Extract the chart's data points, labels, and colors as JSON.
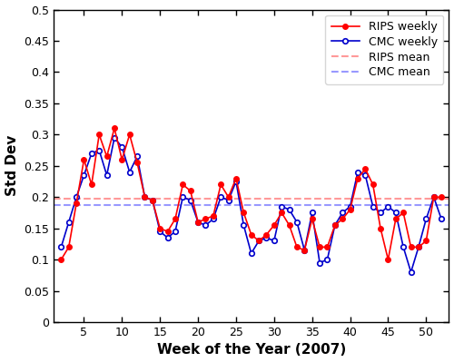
{
  "weeks": [
    2,
    3,
    4,
    5,
    6,
    7,
    8,
    9,
    10,
    11,
    12,
    13,
    14,
    15,
    16,
    17,
    18,
    19,
    20,
    21,
    22,
    23,
    24,
    25,
    26,
    27,
    28,
    29,
    30,
    31,
    32,
    33,
    34,
    35,
    36,
    37,
    38,
    39,
    40,
    41,
    42,
    43,
    44,
    45,
    46,
    47,
    48,
    49,
    50,
    51,
    52
  ],
  "rips": [
    0.1,
    0.12,
    0.19,
    0.26,
    0.22,
    0.3,
    0.265,
    0.31,
    0.26,
    0.3,
    0.255,
    0.2,
    0.195,
    0.15,
    0.145,
    0.165,
    0.22,
    0.21,
    0.16,
    0.165,
    0.17,
    0.22,
    0.2,
    0.23,
    0.175,
    0.14,
    0.13,
    0.14,
    0.155,
    0.175,
    0.155,
    0.12,
    0.115,
    0.165,
    0.12,
    0.12,
    0.155,
    0.165,
    0.18,
    0.23,
    0.245,
    0.22,
    0.15,
    0.1,
    0.165,
    0.175,
    0.12,
    0.12,
    0.13,
    0.2,
    0.2
  ],
  "cmc": [
    0.12,
    0.16,
    0.2,
    0.235,
    0.27,
    0.275,
    0.235,
    0.295,
    0.28,
    0.24,
    0.265,
    0.2,
    0.195,
    0.145,
    0.135,
    0.145,
    0.2,
    0.195,
    0.16,
    0.155,
    0.165,
    0.2,
    0.195,
    0.225,
    0.155,
    0.11,
    0.13,
    0.135,
    0.13,
    0.185,
    0.18,
    0.16,
    0.115,
    0.175,
    0.095,
    0.1,
    0.155,
    0.175,
    0.185,
    0.24,
    0.235,
    0.185,
    0.175,
    0.185,
    0.175,
    0.12,
    0.08,
    0.12,
    0.165,
    0.2,
    0.165
  ],
  "rips_mean": 0.197,
  "cmc_mean": 0.187,
  "rips_color": "#ff0000",
  "cmc_color": "#0000cc",
  "rips_mean_color": "#ff9999",
  "cmc_mean_color": "#9999ff",
  "xlabel": "Week of the Year (2007)",
  "ylabel": "Std Dev",
  "xlim": [
    1,
    53
  ],
  "ylim": [
    0,
    0.5
  ],
  "xticks": [
    5,
    10,
    15,
    20,
    25,
    30,
    35,
    40,
    45,
    50
  ],
  "yticks": [
    0,
    0.05,
    0.1,
    0.15,
    0.2,
    0.25,
    0.3,
    0.35,
    0.4,
    0.45,
    0.5
  ],
  "ytick_labels": [
    "0",
    "0.05",
    "0.1",
    "0.15",
    "0.2",
    "0.25",
    "0.3",
    "0.35",
    "0.4",
    "0.45",
    "0.5"
  ],
  "legend_labels": [
    "RIPS weekly",
    "CMC weekly",
    "RIPS mean",
    "CMC mean"
  ]
}
